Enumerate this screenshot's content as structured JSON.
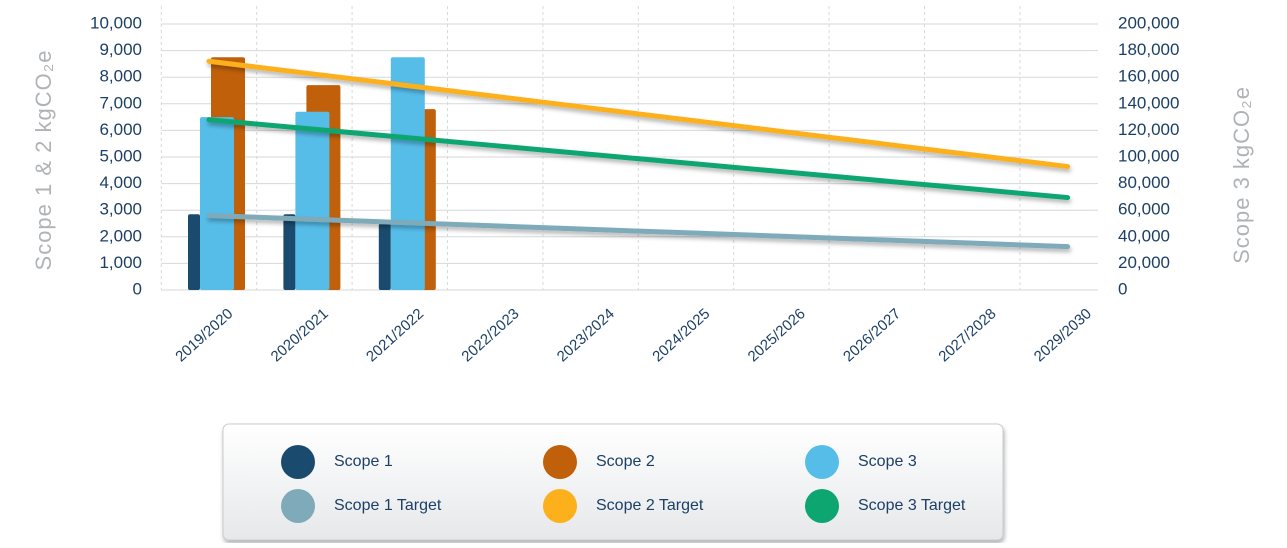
{
  "chart_data": {
    "type": "bar",
    "ylabel": "Scope 1 & 2 kgCO₂e",
    "y2label": "Scope 3 kgCO₂e",
    "categories": [
      "2019/2020",
      "2020/2021",
      "2021/2022",
      "2022/2023",
      "2023/2024",
      "2024/2025",
      "2025/2026",
      "2026/2027",
      "2027/2028",
      "2029/2030"
    ],
    "ylim": [
      0,
      10000
    ],
    "yticks": [
      0,
      {
        "value": 1000,
        "label": "1,000"
      },
      {
        "value": 2000,
        "label": "2,000"
      },
      {
        "value": 3000,
        "label": "3,000"
      },
      {
        "value": 4000,
        "label": "4,000"
      },
      {
        "value": 5000,
        "label": "5,000"
      },
      {
        "value": 6000,
        "label": "6,000"
      },
      {
        "value": 7000,
        "label": "7,000"
      },
      {
        "value": 8000,
        "label": "8,000"
      },
      {
        "value": 9000,
        "label": "9,000"
      },
      {
        "value": 10000,
        "label": "10,000"
      }
    ],
    "y2lim": [
      0,
      200000
    ],
    "y2ticks": [
      0,
      {
        "value": 20000,
        "label": "20,000"
      },
      {
        "value": 40000,
        "label": "40,000"
      },
      {
        "value": 60000,
        "label": "60,000"
      },
      {
        "value": 80000,
        "label": "80,000"
      },
      {
        "value": 100000,
        "label": "100,000"
      },
      {
        "value": 120000,
        "label": "120,000"
      },
      {
        "value": 140000,
        "label": "140,000"
      },
      {
        "value": 160000,
        "label": "160,000"
      },
      {
        "value": 180000,
        "label": "180,000"
      },
      {
        "value": 200000,
        "label": "200,000"
      }
    ],
    "grid": true,
    "series": [
      {
        "name": "Scope 1",
        "type": "bar",
        "color": "#1a4b6e",
        "values": [
          2850,
          2850,
          2500,
          null,
          null,
          null,
          null,
          null,
          null,
          null
        ]
      },
      {
        "name": "Scope 2",
        "type": "bar",
        "color": "#c0600b",
        "values": [
          8750,
          7700,
          6800,
          null,
          null,
          null,
          null,
          null,
          null,
          null
        ]
      },
      {
        "name": "Scope 3",
        "type": "bar",
        "axis": "y2",
        "color": "#56bde9",
        "values": [
          130000,
          134000,
          175000,
          null,
          null,
          null,
          null,
          null,
          null,
          null
        ]
      },
      {
        "name": "Scope 1 Target",
        "type": "line",
        "color": "#7faab9",
        "values": [
          2800,
          2670,
          2540,
          2410,
          2280,
          2150,
          2020,
          1890,
          1760,
          1630
        ]
      },
      {
        "name": "Scope 2 Target",
        "type": "line",
        "color": "#fbb01c",
        "values": [
          8600,
          8160,
          7720,
          7280,
          6840,
          6400,
          5960,
          5520,
          5080,
          4640
        ]
      },
      {
        "name": "Scope 3 Target",
        "type": "line",
        "axis": "y2",
        "color": "#0da670",
        "values": [
          128000,
          121500,
          115000,
          108500,
          102000,
          95500,
          89000,
          82500,
          76000,
          69500
        ]
      }
    ]
  }
}
